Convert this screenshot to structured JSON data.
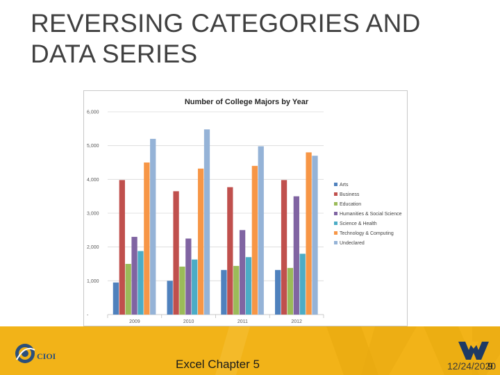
{
  "slide": {
    "title": "REVERSING CATEGORIES AND DATA SERIES",
    "footer_text": "Excel Chapter 5",
    "date": "12/24/2020",
    "slide_number": "9",
    "logo_text": "CIOI"
  },
  "colors": {
    "footer_bg": "#f2b318",
    "title": "#404040"
  },
  "chart_data": {
    "type": "bar",
    "title": "Number of College Majors by Year",
    "xlabel": "",
    "ylabel": "",
    "ylim": [
      0,
      6000
    ],
    "yticks": [
      {
        "value": 0,
        "label": "-"
      },
      {
        "value": 1000,
        "label": "1,000"
      },
      {
        "value": 2000,
        "label": "2,000"
      },
      {
        "value": 3000,
        "label": "3,000"
      },
      {
        "value": 4000,
        "label": "4,000"
      },
      {
        "value": 5000,
        "label": "5,000"
      },
      {
        "value": 6000,
        "label": "6,000"
      }
    ],
    "categories": [
      "2009",
      "2010",
      "2011",
      "2012"
    ],
    "legend_position": "right",
    "series": [
      {
        "name": "Arts",
        "color": "#4f81bd",
        "values": [
          950,
          1000,
          1320,
          1320
        ]
      },
      {
        "name": "Business",
        "color": "#c0504d",
        "values": [
          3980,
          3650,
          3770,
          3980
        ]
      },
      {
        "name": "Education",
        "color": "#9bbb59",
        "values": [
          1500,
          1420,
          1440,
          1380
        ]
      },
      {
        "name": "Humanities & Social Science",
        "color": "#8064a2",
        "values": [
          2300,
          2250,
          2500,
          3500
        ]
      },
      {
        "name": "Science & Health",
        "color": "#4bacc6",
        "values": [
          1880,
          1630,
          1700,
          1800
        ]
      },
      {
        "name": "Technology & Computing",
        "color": "#f79646",
        "values": [
          4500,
          4320,
          4400,
          4800
        ]
      },
      {
        "name": "Undeclared",
        "color": "#95b3d7",
        "values": [
          5200,
          5480,
          4980,
          4700
        ]
      }
    ]
  }
}
